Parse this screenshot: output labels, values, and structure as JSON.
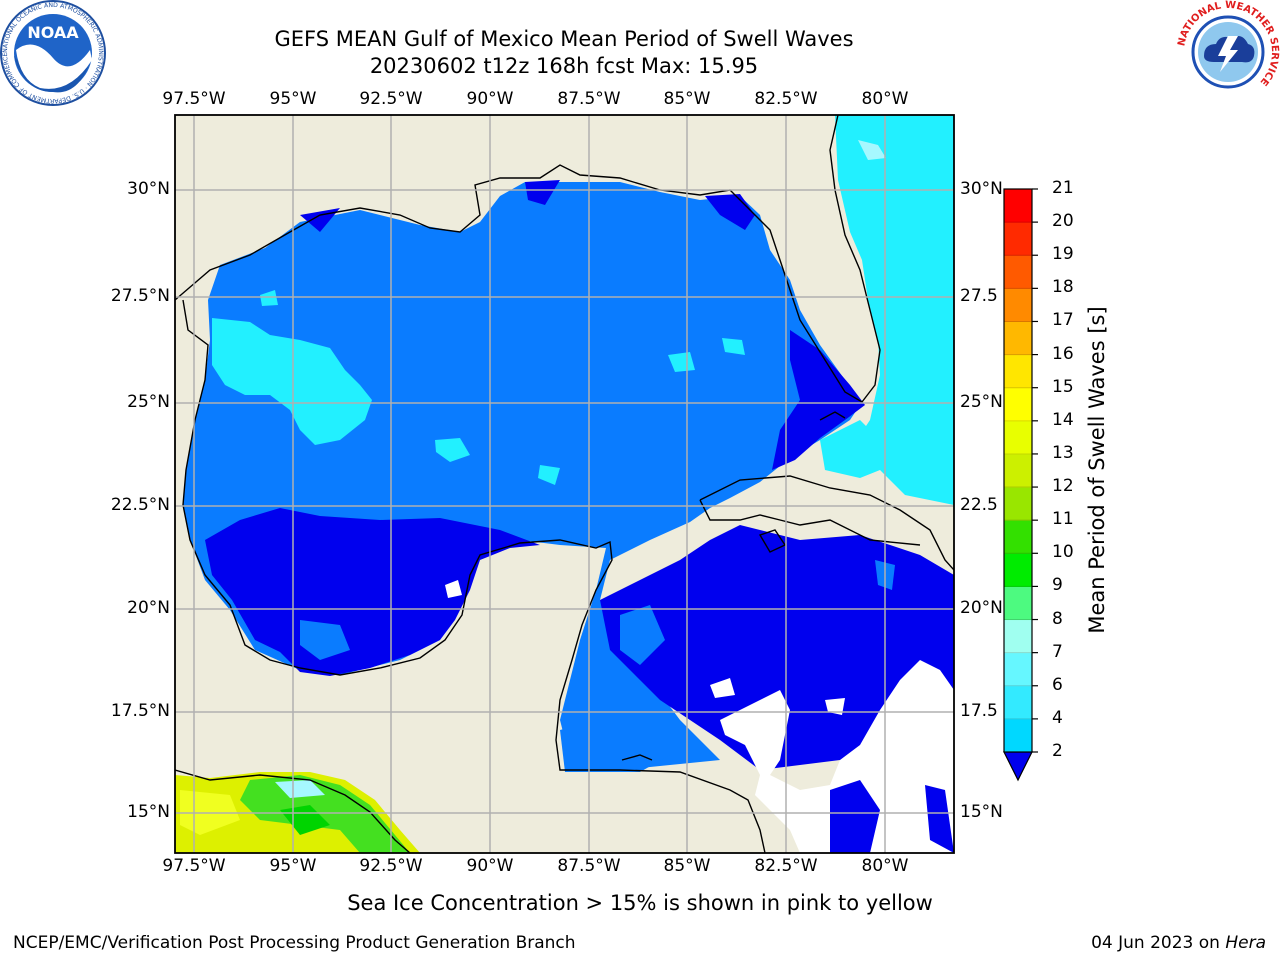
{
  "header": {
    "title_line1": "GEFS MEAN Gulf of Mexico Mean Period of Swell Waves",
    "title_line2": "20230602 t12z 168h fcst   Max: 15.95"
  },
  "map": {
    "region": "Gulf of Mexico",
    "longitude_labels": [
      "97.5°W",
      "95°W",
      "92.5°W",
      "90°W",
      "87.5°W",
      "85°W",
      "82.5°W",
      "80°W"
    ],
    "latitude_labels_left": [
      "30°N",
      "27.5°N",
      "25°N",
      "22.5°N",
      "20°N",
      "17.5°N",
      "15°N"
    ],
    "latitude_labels_right": [
      "30°N",
      "27.5",
      "25°N",
      "22.5",
      "20°N",
      "17.5",
      "15°N"
    ],
    "land_color": "#eeecdc",
    "gridline_color": "#b0b0b0"
  },
  "colorbar": {
    "label": "Mean Period of Swell Waves [s]",
    "ticks": [
      "2",
      "4",
      "6",
      "7",
      "8",
      "9",
      "10",
      "11",
      "12",
      "13",
      "14",
      "15",
      "16",
      "17",
      "18",
      "19",
      "20",
      "21"
    ],
    "colors": [
      "#0044ff",
      "#00d8ff",
      "#33eaff",
      "#66f7ff",
      "#a0fff0",
      "#4dfa80",
      "#00ec00",
      "#33e000",
      "#99e600",
      "#ccf000",
      "#e8ff00",
      "#ffff00",
      "#ffe600",
      "#ffb800",
      "#ff8a00",
      "#ff5a00",
      "#ff2a00",
      "#ff0000"
    ],
    "under_color": "#0000ee"
  },
  "subtitle": "Sea Ice Concentration > 15% is shown in pink to yellow",
  "footer": {
    "left": "NCEP/EMC/Verification Post Processing Product Generation Branch",
    "date": "04 Jun 2023 on ",
    "host": "Hera"
  },
  "logos": {
    "noaa_text": "NOAA",
    "noaa_ring_text": "NATIONAL OCEANIC AND ATMOSPHERIC ADMINISTRATION · U.S. DEPARTMENT OF COMMERCE",
    "nws_ring_text": "NATIONAL WEATHER SERVICE"
  }
}
